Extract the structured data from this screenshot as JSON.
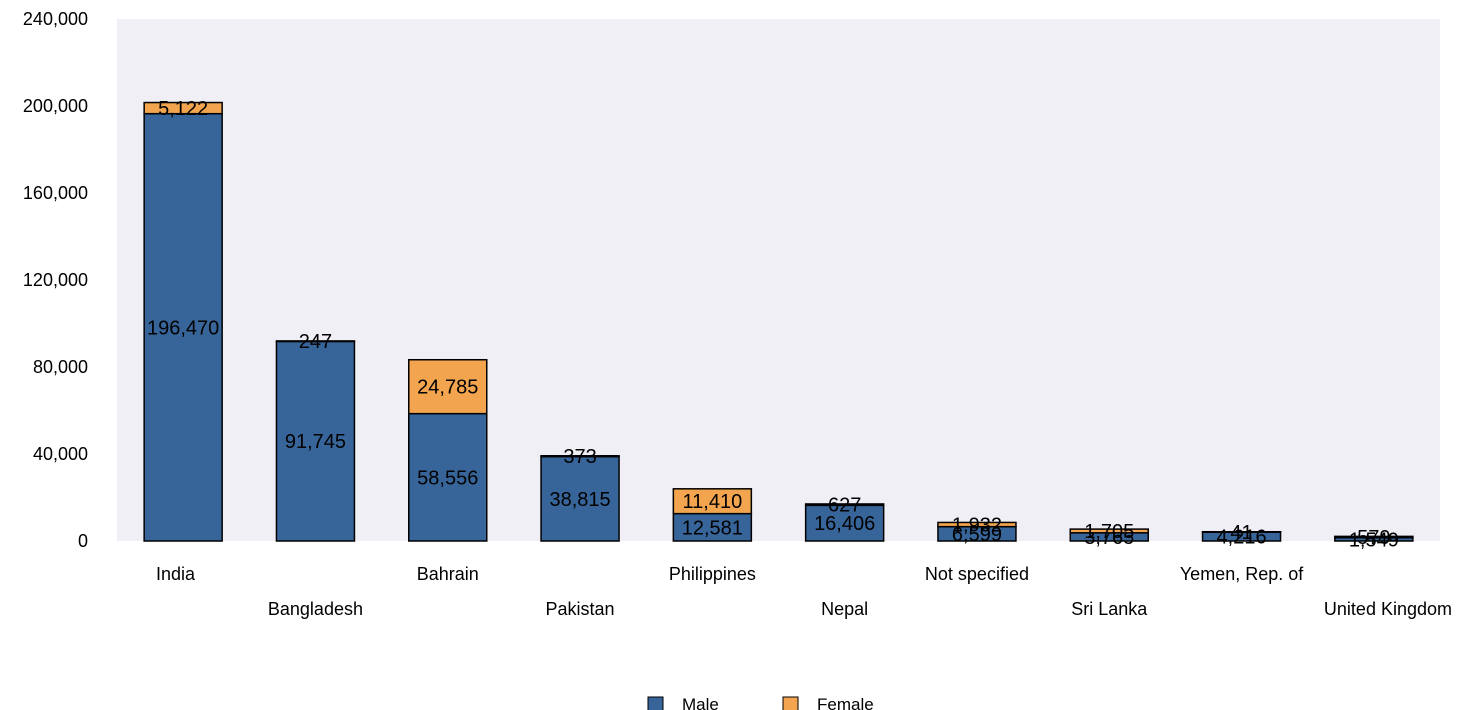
{
  "chart_data": {
    "type": "bar",
    "stacked": true,
    "categories": [
      "India",
      "Bangladesh",
      "Bahrain",
      "Pakistan",
      "Philippines",
      "Nepal",
      "Not specified",
      "Sri Lanka",
      "Yemen, Rep. of",
      "United Kingdom"
    ],
    "series": [
      {
        "name": "Male",
        "color": "#37659a",
        "values": [
          196470,
          91745,
          58556,
          38815,
          12581,
          16406,
          6599,
          3765,
          4216,
          1549
        ],
        "labels": [
          "196,470",
          "91,745",
          "58,556",
          "38,815",
          "12,581",
          "16,406",
          "6,599",
          "3,765",
          "4,216",
          "1,549"
        ]
      },
      {
        "name": "Female",
        "color": "#f2a54e",
        "values": [
          5122,
          247,
          24785,
          373,
          11410,
          627,
          1932,
          1705,
          41,
          579
        ],
        "labels": [
          "5,122",
          "247",
          "24,785",
          "373",
          "11,410",
          "627",
          "1,932",
          "1,705",
          "41",
          "579"
        ]
      }
    ],
    "ylim": [
      0,
      240000
    ],
    "yticks": [
      0,
      40000,
      80000,
      120000,
      160000,
      200000,
      240000
    ],
    "ytick_labels": [
      "0",
      "40,000",
      "80,000",
      "120,000",
      "160,000",
      "200,000",
      "240,000"
    ],
    "legend_position": "bottom-center",
    "grid": false,
    "background_color": "#f0eff5"
  }
}
